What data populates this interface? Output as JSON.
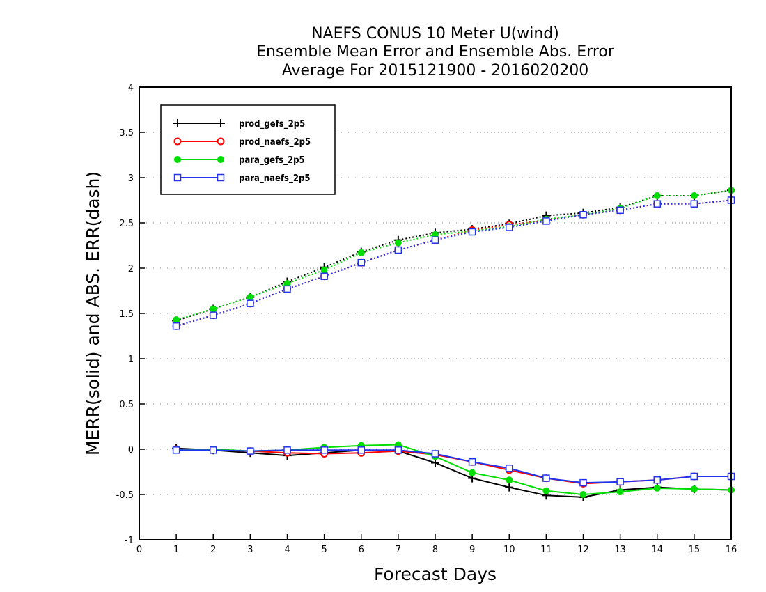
{
  "chart_data": {
    "type": "line",
    "title": [
      "NAEFS CONUS 10 Meter U(wind)",
      "Ensemble Mean Error and Ensemble Abs. Error",
      "Average For 2015121900 - 2016020200"
    ],
    "xlabel": "Forecast Days",
    "ylabel": "MERR(solid) and ABS. ERR(dash)",
    "xlim": [
      0,
      16
    ],
    "ylim": [
      -1,
      4
    ],
    "x_ticks": [
      0,
      1,
      2,
      3,
      4,
      5,
      6,
      7,
      8,
      9,
      10,
      11,
      12,
      13,
      14,
      15,
      16
    ],
    "y_ticks": [
      -1,
      -0.5,
      0,
      0.5,
      1,
      1.5,
      2,
      2.5,
      3,
      3.5,
      4
    ],
    "y_tick_labels": [
      "-1",
      "-0.5",
      "0",
      "0.5",
      "1",
      "1.5",
      "2",
      "2.5",
      "3",
      "3.5",
      "4"
    ],
    "grid": "horizontal dotted",
    "legend_position": "top-left",
    "x": [
      1,
      2,
      3,
      4,
      5,
      6,
      7,
      8,
      9,
      10,
      11,
      12,
      13,
      14,
      15,
      16
    ],
    "series": [
      {
        "name": "prod_gefs_2p5",
        "color": "#000000",
        "marker": "plus",
        "merr": [
          0.01,
          -0.01,
          -0.04,
          -0.07,
          -0.04,
          -0.01,
          -0.02,
          -0.15,
          -0.32,
          -0.42,
          -0.51,
          -0.53,
          -0.45,
          -0.42,
          -0.44,
          -0.45
        ],
        "abs_err": [
          1.42,
          1.55,
          1.68,
          1.85,
          2.01,
          2.18,
          2.31,
          2.39,
          2.43,
          2.49,
          2.58,
          2.61,
          2.67,
          2.8,
          2.8,
          2.86
        ]
      },
      {
        "name": "prod_naefs_2p5",
        "color": "#ff0000",
        "marker": "circle-open",
        "merr": [
          0.0,
          -0.01,
          -0.02,
          -0.04,
          -0.05,
          -0.04,
          -0.02,
          -0.06,
          -0.14,
          -0.23,
          -0.32,
          -0.38,
          -0.36,
          -0.34,
          -0.3,
          -0.3
        ],
        "abs_err": [
          1.36,
          1.48,
          1.61,
          1.77,
          1.91,
          2.06,
          2.2,
          2.31,
          2.42,
          2.48,
          2.53,
          2.59,
          2.64,
          2.71,
          2.71,
          2.75
        ]
      },
      {
        "name": "para_gefs_2p5",
        "color": "#00dd00",
        "marker": "circle-filled",
        "merr": [
          0.0,
          0.0,
          -0.02,
          -0.01,
          0.02,
          0.04,
          0.05,
          -0.08,
          -0.26,
          -0.34,
          -0.46,
          -0.5,
          -0.47,
          -0.43,
          -0.44,
          -0.45
        ],
        "abs_err": [
          1.43,
          1.55,
          1.68,
          1.83,
          1.98,
          2.17,
          2.28,
          2.37,
          2.41,
          2.46,
          2.54,
          2.59,
          2.66,
          2.8,
          2.8,
          2.86
        ]
      },
      {
        "name": "para_naefs_2p5",
        "color": "#2233ee",
        "marker": "square-open",
        "merr": [
          -0.01,
          -0.01,
          -0.02,
          -0.01,
          -0.01,
          -0.01,
          -0.01,
          -0.05,
          -0.14,
          -0.21,
          -0.32,
          -0.37,
          -0.36,
          -0.34,
          -0.3,
          -0.3
        ],
        "abs_err": [
          1.36,
          1.48,
          1.61,
          1.77,
          1.91,
          2.06,
          2.2,
          2.31,
          2.4,
          2.45,
          2.52,
          2.59,
          2.64,
          2.71,
          2.71,
          2.75
        ]
      }
    ]
  }
}
